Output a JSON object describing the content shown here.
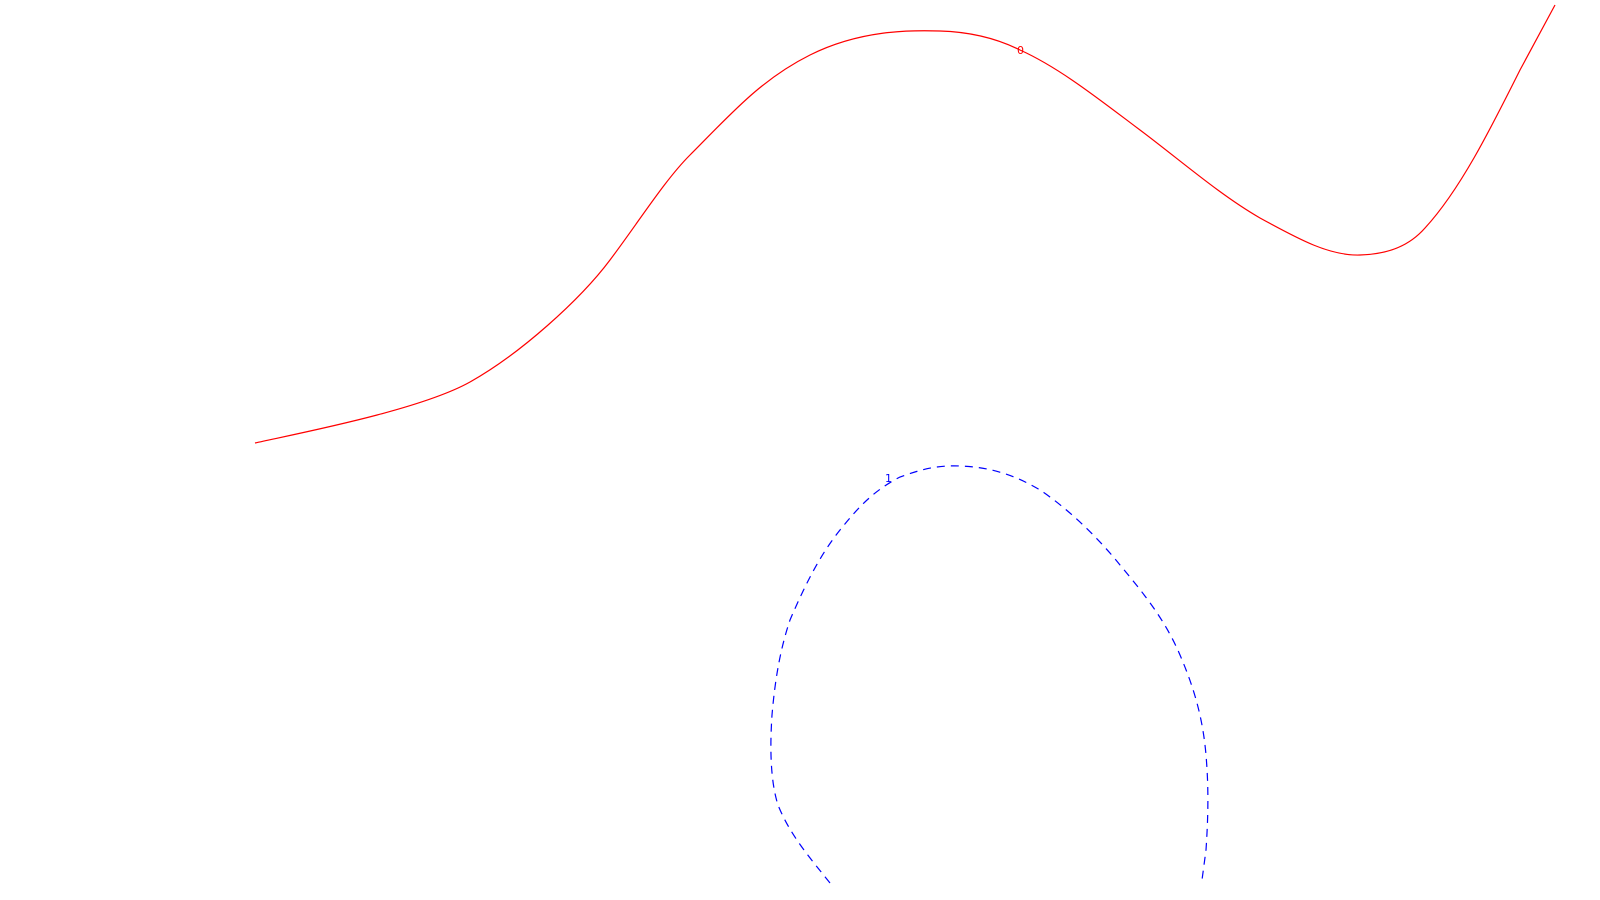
{
  "contours": [
    {
      "id": "contour-0",
      "label": "0",
      "color": "#ff0000",
      "line_style": "solid"
    },
    {
      "id": "contour-1",
      "label": "1",
      "color": "#0000ff",
      "line_style": "dashed"
    }
  ]
}
